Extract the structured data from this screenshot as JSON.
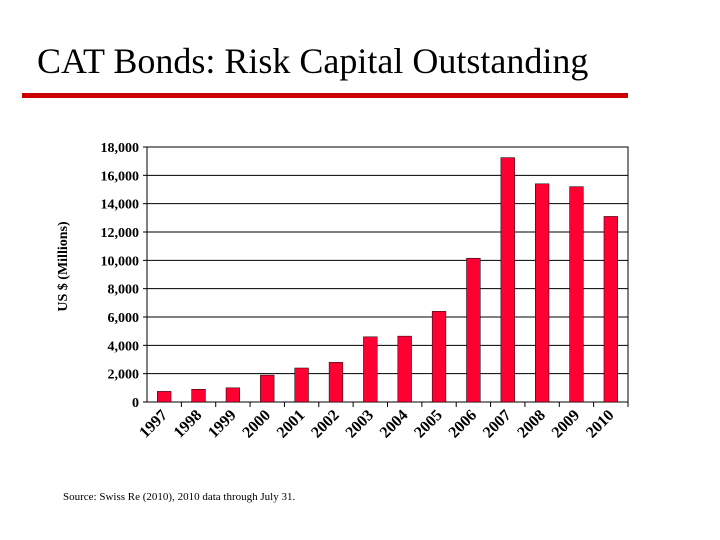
{
  "slide": {
    "title": "CAT Bonds: Risk Capital Outstanding",
    "source_note": "Source: Swiss Re (2010), 2010 data through July 31.",
    "accent_color": "#cc0000"
  },
  "chart_data": {
    "type": "bar",
    "title": "CAT Bonds: Risk Capital Outstanding",
    "xlabel": "",
    "ylabel": "US $ (Millions)",
    "ylim": [
      0,
      18000
    ],
    "yticks": [
      0,
      2000,
      4000,
      6000,
      8000,
      10000,
      12000,
      14000,
      16000,
      18000
    ],
    "ytick_labels": [
      "0",
      "2,000",
      "4,000",
      "6,000",
      "8,000",
      "10,000",
      "12,000",
      "14,000",
      "16,000",
      "18,000"
    ],
    "grid": true,
    "categories": [
      "1997",
      "1998",
      "1999",
      "2000",
      "2001",
      "2002",
      "2003",
      "2004",
      "2005",
      "2006",
      "2007",
      "2008",
      "2009",
      "2010"
    ],
    "values": [
      750,
      900,
      1000,
      1900,
      2400,
      2800,
      4600,
      4650,
      6400,
      10150,
      17250,
      15400,
      15200,
      13100
    ],
    "bar_color": "#ff0033"
  }
}
